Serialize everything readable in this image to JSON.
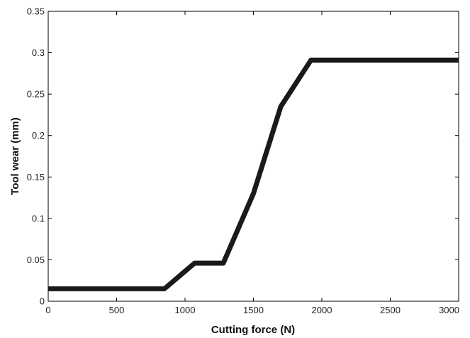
{
  "chart_data": {
    "type": "line",
    "title": "",
    "xlabel": "Cutting force (N)",
    "ylabel": "Tool wear (mm)",
    "xlim": [
      0,
      3000
    ],
    "ylim": [
      0,
      0.35
    ],
    "xticks": [
      0,
      500,
      1000,
      1500,
      2000,
      2500,
      3000
    ],
    "yticks": [
      0,
      0.05,
      0.1,
      0.15,
      0.2,
      0.25,
      0.3,
      0.35
    ],
    "xtick_labels": [
      "0",
      "500",
      "1000",
      "1500",
      "2000",
      "2500",
      "3000"
    ],
    "ytick_labels": [
      "0",
      "0.05",
      "0.1",
      "0.15",
      "0.2",
      "0.25",
      "0.3",
      "0.35"
    ],
    "grid": false,
    "legend": "none",
    "line_color": "#1a1a1a",
    "series": [
      {
        "x": [
          0,
          850,
          1070,
          1280,
          1500,
          1700,
          1920,
          3000
        ],
        "y": [
          0.015,
          0.015,
          0.046,
          0.046,
          0.13,
          0.235,
          0.291,
          0.291
        ]
      }
    ]
  }
}
